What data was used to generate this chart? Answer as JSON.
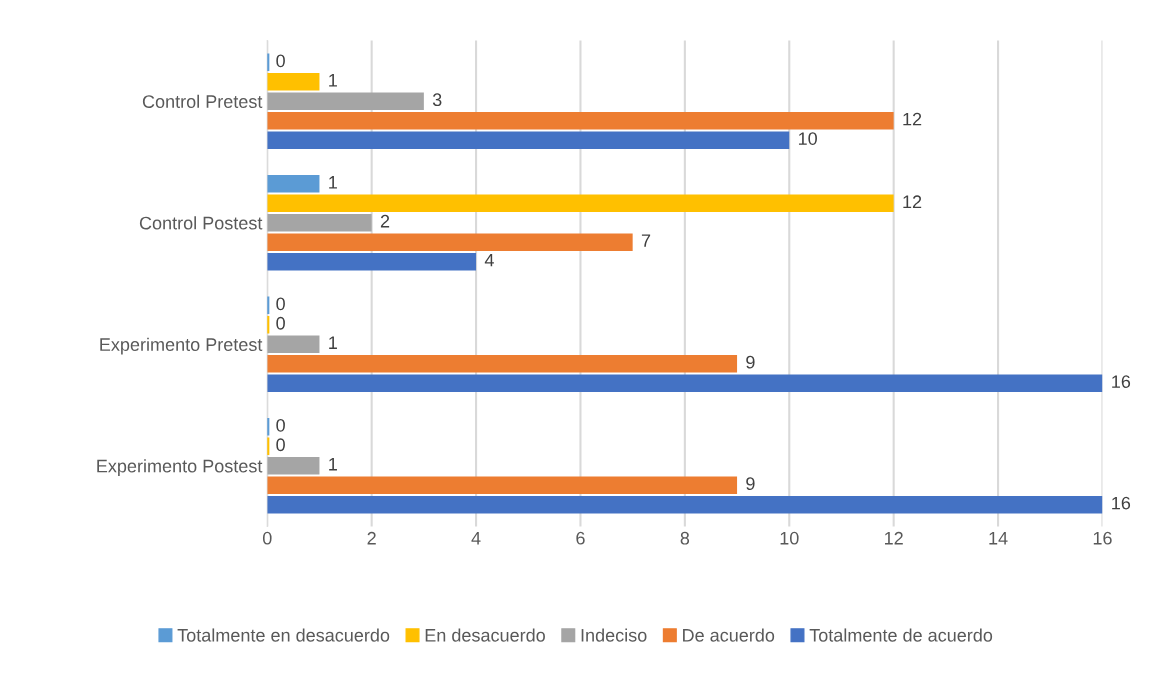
{
  "chart_data": {
    "type": "bar",
    "orientation": "horizontal",
    "categories": [
      "Control Pretest",
      "Control Postest",
      "Experimento Pretest",
      "Experimento Postest"
    ],
    "series": [
      {
        "name": "Totalmente en desacuerdo",
        "color": "#5b9bd5",
        "values": [
          0,
          1,
          0,
          0
        ]
      },
      {
        "name": "En desacuerdo",
        "color": "#ffc000",
        "values": [
          1,
          12,
          0,
          0
        ]
      },
      {
        "name": "Indeciso",
        "color": "#a5a5a5",
        "values": [
          3,
          2,
          1,
          1
        ]
      },
      {
        "name": "De acuerdo",
        "color": "#ed7d31",
        "values": [
          12,
          7,
          9,
          9
        ]
      },
      {
        "name": "Totalmente de acuerdo",
        "color": "#4472c4",
        "values": [
          10,
          4,
          16,
          16
        ]
      }
    ],
    "xlim": [
      0,
      16
    ],
    "xticks": [
      0,
      2,
      4,
      6,
      8,
      10,
      12,
      14,
      16
    ],
    "grid": "x",
    "legend": "bottom",
    "data_labels": true
  }
}
